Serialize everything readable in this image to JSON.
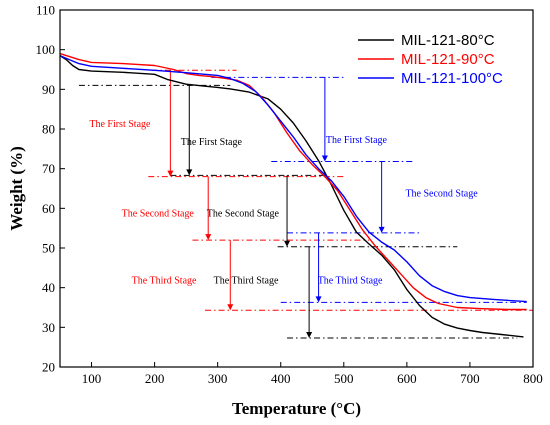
{
  "chart_data": {
    "type": "line",
    "title": "",
    "xlabel": "Temperature (°C)",
    "ylabel": "Weight (%)",
    "xlim": [
      50,
      800
    ],
    "ylim": [
      20,
      110
    ],
    "xticks": [
      100,
      200,
      300,
      400,
      500,
      600,
      700,
      800
    ],
    "yticks": [
      20,
      30,
      40,
      50,
      60,
      70,
      80,
      90,
      100,
      110
    ],
    "grid": false,
    "legend": "top-right",
    "series": [
      {
        "name": "MIL-121-80°C",
        "color": "#000000",
        "x": [
          50,
          60,
          70,
          80,
          100,
          150,
          200,
          220,
          250,
          280,
          300,
          320,
          350,
          380,
          400,
          420,
          440,
          460,
          480,
          500,
          520,
          540,
          560,
          580,
          600,
          620,
          640,
          660,
          680,
          700,
          720,
          750,
          785
        ],
        "y": [
          98.5,
          97.5,
          96,
          95,
          94.6,
          94.3,
          93.8,
          92.5,
          91.3,
          90.8,
          90.5,
          90.1,
          89.3,
          87.6,
          85,
          81.5,
          77,
          72,
          66,
          59.5,
          54,
          51,
          48.2,
          44.5,
          39.5,
          35.5,
          32.5,
          30.8,
          29.8,
          29.2,
          28.7,
          28.2,
          27.6
        ]
      },
      {
        "name": "MIL-121-90°C",
        "color": "#ff0000",
        "x": [
          50,
          60,
          80,
          100,
          150,
          200,
          230,
          250,
          270,
          290,
          310,
          330,
          350,
          370,
          390,
          410,
          430,
          450,
          470,
          490,
          510,
          530,
          550,
          570,
          590,
          610,
          630,
          650,
          680,
          720,
          760,
          790
        ],
        "y": [
          99,
          98.5,
          97.5,
          96.8,
          96.5,
          96,
          95,
          94,
          93.5,
          93.2,
          92.8,
          92.3,
          91,
          88,
          84,
          79,
          74.5,
          71,
          68,
          64.5,
          59.5,
          54.5,
          50.5,
          47,
          43.5,
          40,
          37.5,
          36,
          35,
          34.7,
          34.5,
          34.5
        ]
      },
      {
        "name": "MIL-121-100°C",
        "color": "#0000ff",
        "x": [
          50,
          60,
          80,
          100,
          150,
          200,
          250,
          300,
          320,
          340,
          360,
          380,
          400,
          420,
          440,
          460,
          480,
          500,
          520,
          540,
          560,
          580,
          600,
          620,
          640,
          660,
          680,
          700,
          740,
          790
        ],
        "y": [
          98.5,
          97.8,
          96.5,
          95.8,
          95.3,
          94.8,
          94.2,
          93.5,
          92.7,
          91.5,
          89.5,
          86,
          82,
          78,
          73.5,
          70,
          67,
          63,
          58,
          54,
          51.5,
          49.5,
          46.5,
          43,
          40.5,
          39,
          38,
          37.5,
          37,
          36.5
        ]
      }
    ],
    "annotations": [
      {
        "text": "The First Stage",
        "series": "MIL-121-90°C",
        "color": "#ff0000",
        "x": 145,
        "y": 80.5
      },
      {
        "text": "The First Stage",
        "series": "MIL-121-80°C",
        "color": "#000000",
        "x": 290,
        "y": 76
      },
      {
        "text": "The First Stage",
        "series": "MIL-121-100°C",
        "color": "#0000ff",
        "x": 520,
        "y": 76.5
      },
      {
        "text": "The Second Stage",
        "series": "MIL-121-90°C",
        "color": "#ff0000",
        "x": 205,
        "y": 58
      },
      {
        "text": "The Second Stage",
        "series": "MIL-121-80°C",
        "color": "#000000",
        "x": 340,
        "y": 58
      },
      {
        "text": "The Second Stage",
        "series": "MIL-121-100°C",
        "color": "#0000ff",
        "x": 655,
        "y": 63
      },
      {
        "text": "The Third Stage",
        "series": "MIL-121-90°C",
        "color": "#ff0000",
        "x": 215,
        "y": 41
      },
      {
        "text": "The Third Stage",
        "series": "MIL-121-80°C",
        "color": "#000000",
        "x": 345,
        "y": 41
      },
      {
        "text": "The Third Stage",
        "series": "MIL-121-100°C",
        "color": "#0000ff",
        "x": 510,
        "y": 41
      }
    ],
    "reference_lines": [
      {
        "color": "#000000",
        "x1": 80,
        "x2": 320,
        "y": 91
      },
      {
        "color": "#ff0000",
        "x1": 195,
        "x2": 330,
        "y": 94.8
      },
      {
        "color": "#0000ff",
        "x1": 290,
        "x2": 500,
        "y": 93
      },
      {
        "color": "#ff0000",
        "x1": 190,
        "x2": 500,
        "y": 68
      },
      {
        "color": "#000000",
        "x1": 225,
        "x2": 470,
        "y": 68.3
      },
      {
        "color": "#0000ff",
        "x1": 385,
        "x2": 610,
        "y": 71.8
      },
      {
        "color": "#ff0000",
        "x1": 260,
        "x2": 540,
        "y": 52
      },
      {
        "color": "#000000",
        "x1": 395,
        "x2": 680,
        "y": 50.3
      },
      {
        "color": "#0000ff",
        "x1": 410,
        "x2": 620,
        "y": 53.8
      },
      {
        "color": "#ff0000",
        "x1": 280,
        "x2": 800,
        "y": 34.3
      },
      {
        "color": "#000000",
        "x1": 410,
        "x2": 775,
        "y": 27.3
      },
      {
        "color": "#0000ff",
        "x1": 400,
        "x2": 790,
        "y": 36.3
      }
    ],
    "arrows": [
      {
        "color": "#000000",
        "x": 255,
        "y1": 91,
        "y2": 68.3
      },
      {
        "color": "#ff0000",
        "x": 225,
        "y1": 94.8,
        "y2": 68
      },
      {
        "color": "#0000ff",
        "x": 470,
        "y1": 93,
        "y2": 71.8
      },
      {
        "color": "#000000",
        "x": 410,
        "y1": 68.3,
        "y2": 50.3
      },
      {
        "color": "#ff0000",
        "x": 285,
        "y1": 68,
        "y2": 52
      },
      {
        "color": "#0000ff",
        "x": 560,
        "y1": 71.8,
        "y2": 53.8
      },
      {
        "color": "#000000",
        "x": 445,
        "y1": 50.3,
        "y2": 27.3
      },
      {
        "color": "#ff0000",
        "x": 320,
        "y1": 52,
        "y2": 34.3
      },
      {
        "color": "#0000ff",
        "x": 460,
        "y1": 53.8,
        "y2": 36.3
      }
    ]
  }
}
